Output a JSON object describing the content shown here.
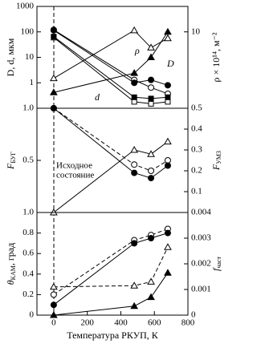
{
  "chart_data": [
    {
      "type": "line",
      "ylabel": "D, d, мкм",
      "y2label": "ρ × 10¹⁴, м⁻²",
      "x": [
        0,
        480,
        580,
        680
      ],
      "xlim": [
        -100,
        800
      ],
      "ylog": true,
      "ylim": [
        0.1,
        1000
      ],
      "yticks": [
        1,
        10,
        100,
        1000
      ],
      "y2log": true,
      "y2lim": [
        0.01,
        100
      ],
      "y2ticks": [
        10
      ],
      "annotations": [
        "ρ",
        "D",
        "d"
      ],
      "series": [
        {
          "marker": "triangle-open",
          "dash": false,
          "color": "#000",
          "axis": "y2",
          "values": [
            0.15,
            11.5,
            2.4,
            5.6
          ]
        },
        {
          "marker": "triangle-filled",
          "dash": false,
          "color": "#000",
          "axis": "y2",
          "values": [
            0.042,
            0.24,
            1.0,
            10
          ]
        },
        {
          "marker": "circle-open",
          "dash": false,
          "color": "#000",
          "values": [
            120,
            1.3,
            0.65,
            0.37
          ]
        },
        {
          "marker": "circle-filled",
          "dash": false,
          "color": "#000",
          "values": [
            115,
            1.0,
            1.3,
            0.8
          ]
        },
        {
          "marker": "square-open",
          "dash": false,
          "color": "#000",
          "values": [
            60,
            0.18,
            0.15,
            0.18
          ]
        },
        {
          "marker": "square-filled",
          "dash": false,
          "color": "#000",
          "values": [
            65,
            0.27,
            0.24,
            0.27
          ]
        }
      ]
    },
    {
      "type": "line",
      "ylabel": {
        "text": "F",
        "sub": "БУГ"
      },
      "y2label": {
        "text": "F",
        "sub": "УМЗ"
      },
      "x": [
        0,
        480,
        580,
        680
      ],
      "xlim": [
        -100,
        800
      ],
      "ylim": [
        0,
        1
      ],
      "yticks": [
        0.5,
        {
          "value": 1,
          "label": "1.0"
        }
      ],
      "y2lim": [
        0,
        0.5
      ],
      "y2ticks": [
        0.1,
        0.2,
        0.3,
        0.4,
        0.5
      ],
      "annotations": [
        "Исходное",
        "состояние"
      ],
      "series": [
        {
          "marker": "circle-open",
          "dash": true,
          "color": "#000",
          "values": [
            1.0,
            0.46,
            0.4,
            0.5
          ]
        },
        {
          "marker": "circle-filled",
          "dash": false,
          "color": "#000",
          "values": [
            1.0,
            0.38,
            0.33,
            0.45
          ]
        },
        {
          "marker": "triangle-open",
          "dash": false,
          "color": "#000",
          "axis": "y2",
          "values": [
            0,
            0.3,
            0.28,
            0.34
          ]
        }
      ]
    },
    {
      "type": "line",
      "ylabel": {
        "text": "θ",
        "sub": "КАМ",
        "after": ", град"
      },
      "y2label": {
        "text": "f",
        "sub": "част"
      },
      "xlabel": "Температура РКУП, К",
      "x": [
        0,
        480,
        580,
        680
      ],
      "xlim": [
        -100,
        800
      ],
      "xticks": [
        0,
        200,
        400,
        600,
        800
      ],
      "ylim": [
        0,
        1
      ],
      "yticks": [
        0,
        0.2,
        0.4,
        0.6,
        0.8,
        {
          "value": 1,
          "label": "1.0"
        }
      ],
      "y2lim": [
        0,
        0.004
      ],
      "y2ticks": [
        0,
        0.001,
        0.002,
        0.003,
        0.004
      ],
      "series": [
        {
          "marker": "circle-open",
          "dash": true,
          "color": "#000",
          "values": [
            0.2,
            0.73,
            0.78,
            0.84
          ]
        },
        {
          "marker": "circle-filled",
          "dash": false,
          "color": "#000",
          "values": [
            0.1,
            0.7,
            0.75,
            0.8
          ]
        },
        {
          "marker": "triangle-open",
          "dash": true,
          "color": "#000",
          "axis": "y2",
          "values": [
            0.0011,
            0.00115,
            0.0013,
            0.00265
          ]
        },
        {
          "marker": "triangle-filled",
          "dash": false,
          "color": "#000",
          "axis": "y2",
          "values": [
            0,
            0.00035,
            0.0007,
            0.00165
          ]
        }
      ]
    }
  ]
}
